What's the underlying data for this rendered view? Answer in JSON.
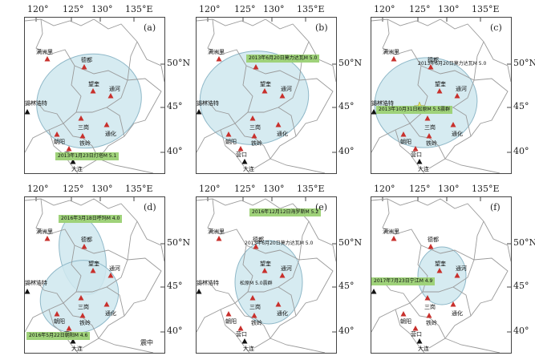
{
  "axes": {
    "lon_ticks": [
      "120°",
      "125°",
      "130°",
      "135°E"
    ],
    "lat_ticks": [
      "50°N",
      "45°",
      "40°"
    ]
  },
  "cities": {
    "manzhouli": "满洲里",
    "dedu": "德都",
    "wangkui": "望奎",
    "tonghe": "通河",
    "xilinhot": "锡林浩特",
    "sangang": "三岗",
    "tonghua": "通化",
    "chaoyang": "朝阳",
    "tieling": "铁岭",
    "yingkou": "营口",
    "dalian": "大连"
  },
  "panels": [
    {
      "label": "(a)",
      "events": [
        "2013年1月23日灯塔M 5.1"
      ]
    },
    {
      "label": "(b)",
      "events": [
        "2013年6月20日莫力达瓦M 5.0"
      ]
    },
    {
      "label": "(c)",
      "events": [
        "2013年6月20日莫力达瓦M 5.0",
        "2013年10月31日松原M 5.5震群"
      ]
    },
    {
      "label": "(d)",
      "events": [
        "2016年3月18日呼玛M 4.0",
        "2016年5月22日朝阳M 4.6"
      ]
    },
    {
      "label": "(e)",
      "events": [
        "2016年12月12日海罗斯M 5.2",
        "2013年6月20日莫力达瓦M 5.0",
        "松原M 5.0震群"
      ]
    },
    {
      "label": "(f)",
      "events": [
        "2017年7月23日宁江M 4.9"
      ]
    }
  ],
  "legend_text": "震中",
  "colors": {
    "ellipse_fill": "#cfe7ef",
    "ellipse_stroke": "#8fb8c8",
    "marker": "#c8302c",
    "label_bg": "#9fd27a",
    "border": "#9a9a9a"
  }
}
